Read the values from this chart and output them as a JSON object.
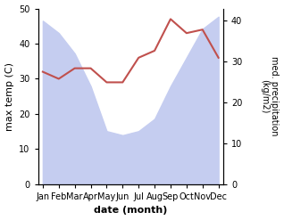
{
  "months": [
    "Jan",
    "Feb",
    "Mar",
    "Apr",
    "May",
    "Jun",
    "Jul",
    "Aug",
    "Sep",
    "Oct",
    "Nov",
    "Dec"
  ],
  "month_indices": [
    0,
    1,
    2,
    3,
    4,
    5,
    6,
    7,
    8,
    9,
    10,
    11
  ],
  "temperature": [
    32,
    30,
    33,
    33,
    29,
    29,
    36,
    38,
    47,
    43,
    44,
    36
  ],
  "precipitation": [
    40,
    37,
    32,
    24,
    13,
    12,
    13,
    16,
    24,
    31,
    38,
    41
  ],
  "temp_color": "#c0504d",
  "precip_fill_color": "#c5cdf0",
  "temp_ylim": [
    0,
    50
  ],
  "precip_ylim": [
    0,
    43
  ],
  "temp_yticks": [
    0,
    10,
    20,
    30,
    40,
    50
  ],
  "precip_right_ticks": [
    0,
    10,
    20,
    30,
    40
  ],
  "xlabel": "date (month)",
  "ylabel_left": "max temp (C)",
  "ylabel_right": "med. precipitation\n(kg/m2)",
  "figsize": [
    3.18,
    2.47
  ],
  "dpi": 100
}
